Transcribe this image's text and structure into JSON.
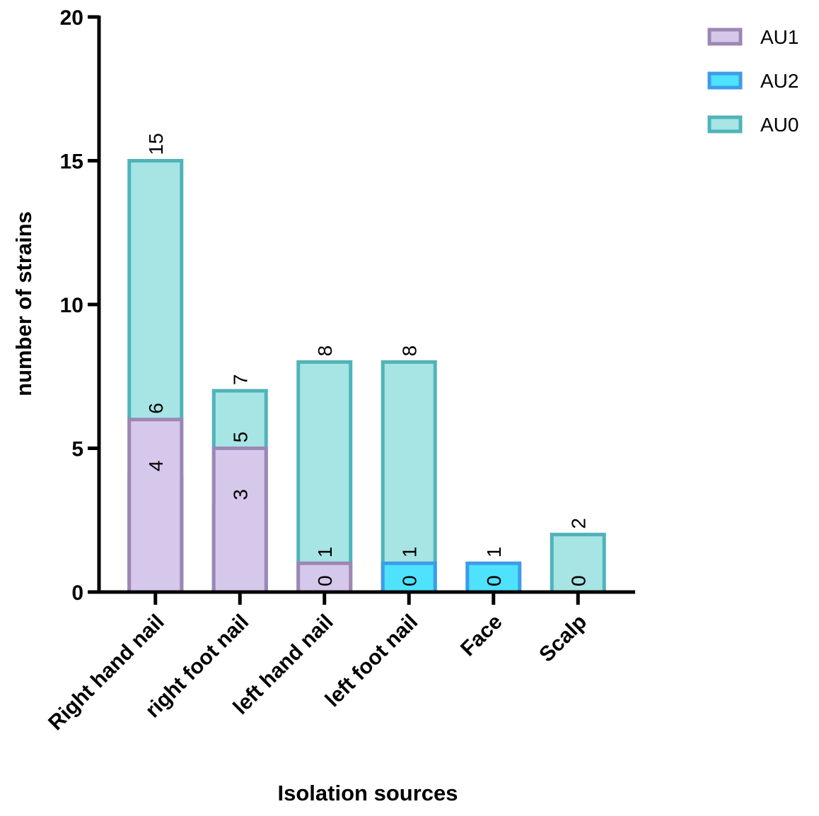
{
  "chart_data": {
    "type": "bar",
    "xlabel": "Isolation sources",
    "ylabel": "number of strains",
    "categories": [
      "Right hand nail",
      "right foot nail",
      "left hand nail",
      "left foot nail",
      "Face",
      "Scalp"
    ],
    "series": [
      {
        "name": "AU1",
        "color": "#d6c8ea",
        "edge": "#9c87b4",
        "values": [
          6,
          5,
          1,
          0,
          0,
          0
        ]
      },
      {
        "name": "AU2",
        "color": "#4ee2fc",
        "edge": "#3d9ce8",
        "values": [
          4,
          3,
          0,
          1,
          1,
          0
        ]
      },
      {
        "name": "AU0",
        "color": "#a7e4e4",
        "edge": "#4fb4b9",
        "values": [
          15,
          7,
          8,
          8,
          0,
          2
        ]
      }
    ],
    "ylim": [
      0,
      20
    ],
    "yticks": [
      0,
      5,
      10,
      15,
      20
    ]
  }
}
